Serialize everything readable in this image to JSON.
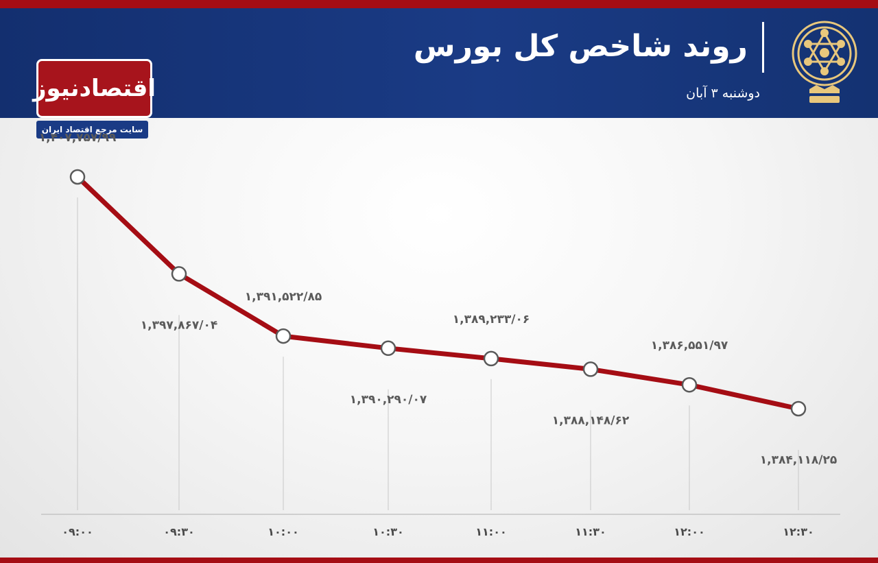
{
  "header": {
    "title": "روند شاخص کل بورس",
    "subtitle": "دوشنبه ۳ آبان"
  },
  "logo": {
    "name": "اقتصادنیوز",
    "tagline": "سایت مرجع اقتصاد ایران"
  },
  "colors": {
    "line": "#a50d14",
    "header_bg": "#1a3b85",
    "accent_strip": "#a50d14",
    "emblem": "#e8c77c"
  },
  "chart_data": {
    "type": "line",
    "title": "روند شاخص کل بورس",
    "subtitle": "دوشنبه ۳ آبان",
    "categories": [
      "09:00",
      "09:30",
      "10:00",
      "10:30",
      "11:00",
      "11:30",
      "12:00",
      "12:30"
    ],
    "tick_labels": [
      "۰۹:۰۰",
      "۰۹:۳۰",
      "۱۰:۰۰",
      "۱۰:۳۰",
      "۱۱:۰۰",
      "۱۱:۳۰",
      "۱۲:۰۰",
      "۱۲:۳۰"
    ],
    "values": [
      1407757.99,
      1397867.04,
      1391522.85,
      1390290.07,
      1389233.06,
      1388148.62,
      1386551.97,
      1384118.25
    ],
    "value_labels": [
      "۱,۴۰۷,۷۵۷/۹۹",
      "۱,۳۹۷,۸۶۷/۰۴",
      "۱,۳۹۱,۵۲۲/۸۵",
      "۱,۳۹۰,۲۹۰/۰۷",
      "۱,۳۸۹,۲۳۳/۰۶",
      "۱,۳۸۸,۱۴۸/۶۲",
      "۱,۳۸۶,۵۵۱/۹۷",
      "۱,۳۸۴,۱۱۸/۲۵"
    ],
    "label_positions": [
      "above",
      "below",
      "above",
      "below",
      "above",
      "below",
      "above",
      "below"
    ],
    "xlabel": "",
    "ylabel": "",
    "grid": "vertical drop lines",
    "legend": "none"
  }
}
